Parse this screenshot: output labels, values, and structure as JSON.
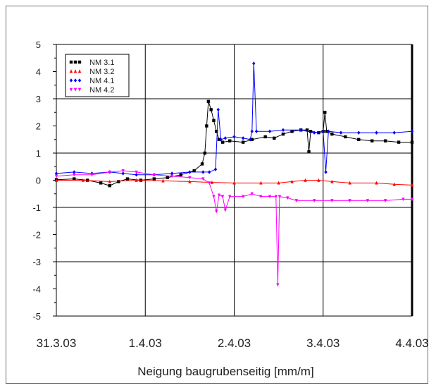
{
  "chart_data": {
    "type": "line",
    "title": "",
    "xlabel": "Neigung baugrubenseitig [mm/m]",
    "ylabel": "",
    "x_ticks": [
      "31.3.03",
      "1.4.03",
      "2.4.03",
      "3.4.03",
      "4.4.03"
    ],
    "xlim": [
      0,
      4
    ],
    "ylim": [
      -5,
      5
    ],
    "y_ticks": [
      "-5",
      "-4",
      "-3",
      "-2",
      "-1",
      "0",
      "1",
      "2",
      "3",
      "4",
      "5"
    ],
    "grid": true,
    "legend": "top-left",
    "series": [
      {
        "name": "NM 3.1",
        "color": "#000000",
        "marker": "square",
        "points": [
          [
            0,
            0.02
          ],
          [
            0.2,
            0.05
          ],
          [
            0.35,
            0.0
          ],
          [
            0.5,
            -0.1
          ],
          [
            0.6,
            -0.2
          ],
          [
            0.7,
            -0.05
          ],
          [
            0.8,
            0.05
          ],
          [
            0.95,
            0.0
          ],
          [
            1.1,
            0.05
          ],
          [
            1.25,
            0.1
          ],
          [
            1.4,
            0.2
          ],
          [
            1.55,
            0.35
          ],
          [
            1.64,
            0.6
          ],
          [
            1.67,
            1.0
          ],
          [
            1.69,
            2.0
          ],
          [
            1.71,
            2.9
          ],
          [
            1.74,
            2.6
          ],
          [
            1.77,
            2.2
          ],
          [
            1.8,
            1.8
          ],
          [
            1.83,
            1.5
          ],
          [
            1.87,
            1.4
          ],
          [
            1.95,
            1.45
          ],
          [
            2.1,
            1.4
          ],
          [
            2.2,
            1.5
          ],
          [
            2.35,
            1.6
          ],
          [
            2.45,
            1.55
          ],
          [
            2.55,
            1.7
          ],
          [
            2.65,
            1.8
          ],
          [
            2.75,
            1.85
          ],
          [
            2.82,
            1.85
          ],
          [
            2.84,
            1.05
          ],
          [
            2.86,
            1.8
          ],
          [
            2.95,
            1.75
          ],
          [
            3.0,
            1.8
          ],
          [
            3.02,
            2.5
          ],
          [
            3.04,
            1.8
          ],
          [
            3.1,
            1.7
          ],
          [
            3.25,
            1.6
          ],
          [
            3.4,
            1.5
          ],
          [
            3.55,
            1.45
          ],
          [
            3.7,
            1.45
          ],
          [
            3.85,
            1.4
          ],
          [
            4.0,
            1.4
          ]
        ]
      },
      {
        "name": "NM 3.2",
        "color": "#ff0000",
        "marker": "triangle-up",
        "points": [
          [
            0,
            0.0
          ],
          [
            0.3,
            0.0
          ],
          [
            0.6,
            -0.05
          ],
          [
            0.9,
            0.0
          ],
          [
            1.2,
            -0.02
          ],
          [
            1.5,
            -0.05
          ],
          [
            1.75,
            -0.08
          ],
          [
            2.0,
            -0.1
          ],
          [
            2.3,
            -0.1
          ],
          [
            2.5,
            -0.1
          ],
          [
            2.65,
            -0.05
          ],
          [
            2.8,
            0.0
          ],
          [
            2.95,
            0.0
          ],
          [
            3.1,
            -0.05
          ],
          [
            3.3,
            -0.1
          ],
          [
            3.6,
            -0.1
          ],
          [
            3.8,
            -0.15
          ],
          [
            4.0,
            -0.18
          ]
        ]
      },
      {
        "name": "NM 4.1",
        "color": "#0000ff",
        "marker": "diamond",
        "points": [
          [
            0,
            0.25
          ],
          [
            0.2,
            0.3
          ],
          [
            0.4,
            0.25
          ],
          [
            0.6,
            0.3
          ],
          [
            0.75,
            0.25
          ],
          [
            0.9,
            0.2
          ],
          [
            1.1,
            0.2
          ],
          [
            1.3,
            0.25
          ],
          [
            1.5,
            0.3
          ],
          [
            1.65,
            0.3
          ],
          [
            1.72,
            0.3
          ],
          [
            1.79,
            0.4
          ],
          [
            1.82,
            2.6
          ],
          [
            1.85,
            1.5
          ],
          [
            1.9,
            1.55
          ],
          [
            2.0,
            1.6
          ],
          [
            2.1,
            1.55
          ],
          [
            2.18,
            1.5
          ],
          [
            2.2,
            1.8
          ],
          [
            2.22,
            4.3
          ],
          [
            2.25,
            1.8
          ],
          [
            2.4,
            1.8
          ],
          [
            2.55,
            1.85
          ],
          [
            2.75,
            1.85
          ],
          [
            2.9,
            1.75
          ],
          [
            3.0,
            1.8
          ],
          [
            3.03,
            0.3
          ],
          [
            3.06,
            1.8
          ],
          [
            3.2,
            1.75
          ],
          [
            3.4,
            1.75
          ],
          [
            3.6,
            1.75
          ],
          [
            3.8,
            1.75
          ],
          [
            4.0,
            1.8
          ]
        ]
      },
      {
        "name": "NM 4.2",
        "color": "#ff00ff",
        "marker": "triangle-down",
        "points": [
          [
            0,
            0.15
          ],
          [
            0.2,
            0.2
          ],
          [
            0.4,
            0.2
          ],
          [
            0.6,
            0.3
          ],
          [
            0.75,
            0.35
          ],
          [
            0.9,
            0.3
          ],
          [
            1.1,
            0.2
          ],
          [
            1.3,
            0.15
          ],
          [
            1.5,
            0.1
          ],
          [
            1.65,
            0.05
          ],
          [
            1.72,
            -0.1
          ],
          [
            1.77,
            -0.6
          ],
          [
            1.8,
            -1.15
          ],
          [
            1.83,
            -0.55
          ],
          [
            1.87,
            -0.6
          ],
          [
            1.9,
            -1.1
          ],
          [
            1.95,
            -0.6
          ],
          [
            2.1,
            -0.6
          ],
          [
            2.2,
            -0.5
          ],
          [
            2.3,
            -0.6
          ],
          [
            2.4,
            -0.6
          ],
          [
            2.47,
            -0.6
          ],
          [
            2.49,
            -3.85
          ],
          [
            2.51,
            -0.6
          ],
          [
            2.6,
            -0.65
          ],
          [
            2.7,
            -0.75
          ],
          [
            2.9,
            -0.75
          ],
          [
            3.1,
            -0.75
          ],
          [
            3.3,
            -0.75
          ],
          [
            3.5,
            -0.75
          ],
          [
            3.7,
            -0.75
          ],
          [
            3.9,
            -0.7
          ],
          [
            4.0,
            -0.7
          ]
        ]
      }
    ]
  }
}
